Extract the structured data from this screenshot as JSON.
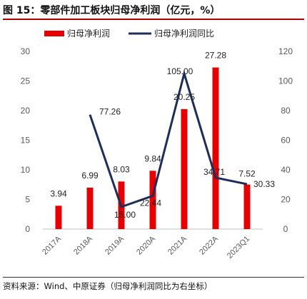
{
  "title": "图 15：零部件加工板块归母净利润（亿元，%）",
  "source": "资料来源：Wind、中原证券（归母净利润同比为右坐标）",
  "colors": {
    "bar": "#e60000",
    "line": "#1f2d5c",
    "title_rule": "#b00000"
  },
  "chart_data": {
    "type": "bar+line",
    "categories": [
      "2017A",
      "2018A",
      "2019A",
      "2020A",
      "2021A",
      "2022A",
      "2023Q1"
    ],
    "series": [
      {
        "name": "归母净利润",
        "type": "bar",
        "axis": "left",
        "values": [
          3.94,
          6.99,
          8.03,
          9.84,
          20.25,
          27.28,
          7.52
        ],
        "labels": [
          "3.94",
          "6.99",
          "8.03",
          "9.84",
          "20.25",
          "27.28",
          "7.52"
        ]
      },
      {
        "name": "归母净利润同比",
        "type": "line",
        "axis": "right",
        "values": [
          null,
          77.26,
          15.0,
          22.44,
          105.0,
          34.71,
          30.33
        ],
        "labels": [
          "",
          "77.26",
          "15.00",
          "22.44",
          "105.00",
          "34.71",
          "30.33"
        ]
      }
    ],
    "y_left": {
      "min": 0,
      "max": 30,
      "ticks": [
        "0",
        "5",
        "10",
        "15",
        "20",
        "25",
        "30"
      ]
    },
    "y_right": {
      "min": 0,
      "max": 120,
      "ticks": [
        "0",
        "20",
        "40",
        "60",
        "80",
        "100",
        "120"
      ]
    },
    "legend_position": "top"
  }
}
